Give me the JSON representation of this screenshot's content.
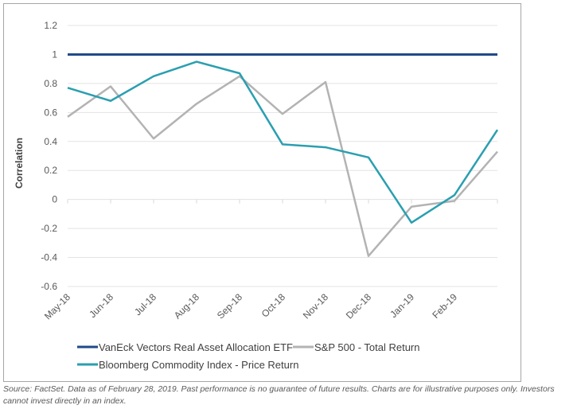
{
  "chart_data": {
    "type": "line",
    "title": "",
    "xlabel": "",
    "ylabel": "Correlation",
    "ylim": [
      -0.6,
      1.2
    ],
    "yticks": [
      1.2,
      1,
      0.8,
      0.6,
      0.4,
      0.2,
      0,
      -0.2,
      -0.4,
      -0.6
    ],
    "ytick_labels": [
      "1.2",
      "1",
      "0.8",
      "0.6",
      "0.4",
      "0.2",
      "0",
      "-0.2",
      "-0.4",
      "-0.6"
    ],
    "categories": [
      "May-18",
      "Jun-18",
      "Jul-18",
      "Aug-18",
      "Sep-18",
      "Oct-18",
      "Nov-18",
      "Dec-18",
      "Jan-19",
      "Feb-19",
      ""
    ],
    "grid": true,
    "legend_position": "bottom",
    "series": [
      {
        "name": "VanEck Vectors Real Asset Allocation ETF",
        "color": "#1f4a8a",
        "values": [
          1,
          1,
          1,
          1,
          1,
          1,
          1,
          1,
          1,
          1,
          1
        ]
      },
      {
        "name": "S&P 500 - Total Return",
        "color": "#b3b3b3",
        "values": [
          0.57,
          0.78,
          0.42,
          0.66,
          0.85,
          0.59,
          0.81,
          -0.39,
          -0.05,
          -0.01,
          0.33
        ]
      },
      {
        "name": "Bloomberg Commodity Index - Price Return",
        "color": "#2a9fb0",
        "values": [
          0.77,
          0.68,
          0.85,
          0.95,
          0.87,
          0.38,
          0.36,
          0.29,
          -0.16,
          0.03,
          0.48
        ]
      }
    ]
  },
  "footer": {
    "source_note": "Source: FactSet. Data as of February 28, 2019. Past performance is no guarantee of future results. Charts are for illustrative purposes only. Investors cannot invest directly in an index."
  }
}
